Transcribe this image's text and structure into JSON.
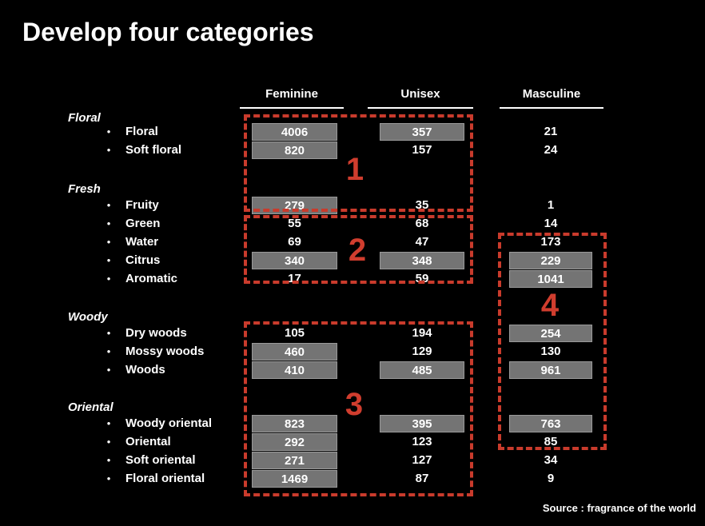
{
  "title": "Develop four categories",
  "source": "Source : fragrance of the world",
  "columns": [
    "Feminine",
    "Unisex",
    "Masculine"
  ],
  "icons": {
    "bullet": "•"
  },
  "colors": {
    "background": "#000000",
    "text": "#ffffff",
    "dashed_red": "#c93b2c",
    "number_red": "#d03d2e",
    "value_box_fill": "#747474",
    "value_box_border": "#9a9a9a"
  },
  "annotations": [
    {
      "label": "1"
    },
    {
      "label": "2"
    },
    {
      "label": "3"
    },
    {
      "label": "4"
    }
  ],
  "groups": [
    {
      "name": "Floral",
      "rows": [
        {
          "label": "Floral",
          "values": [
            {
              "v": "4006",
              "boxed": true
            },
            {
              "v": "357",
              "boxed": true
            },
            {
              "v": "21",
              "boxed": false
            }
          ]
        },
        {
          "label": "Soft floral",
          "values": [
            {
              "v": "820",
              "boxed": true
            },
            {
              "v": "157",
              "boxed": false
            },
            {
              "v": "24",
              "boxed": false
            }
          ]
        }
      ]
    },
    {
      "name": "Fresh",
      "rows": [
        {
          "label": "Fruity",
          "values": [
            {
              "v": "279",
              "boxed": true
            },
            {
              "v": "35",
              "boxed": false
            },
            {
              "v": "1",
              "boxed": false
            }
          ]
        },
        {
          "label": "Green",
          "values": [
            {
              "v": "55",
              "boxed": false
            },
            {
              "v": "68",
              "boxed": false
            },
            {
              "v": "14",
              "boxed": false
            }
          ]
        },
        {
          "label": "Water",
          "values": [
            {
              "v": "69",
              "boxed": false
            },
            {
              "v": "47",
              "boxed": false
            },
            {
              "v": "173",
              "boxed": false
            }
          ]
        },
        {
          "label": "Citrus",
          "values": [
            {
              "v": "340",
              "boxed": true
            },
            {
              "v": "348",
              "boxed": true
            },
            {
              "v": "229",
              "boxed": true
            }
          ]
        },
        {
          "label": "Aromatic",
          "values": [
            {
              "v": "17",
              "boxed": false
            },
            {
              "v": "59",
              "boxed": false
            },
            {
              "v": "1041",
              "boxed": true
            }
          ]
        }
      ]
    },
    {
      "name": "Woody",
      "rows": [
        {
          "label": "Dry woods",
          "values": [
            {
              "v": "105",
              "boxed": false
            },
            {
              "v": "194",
              "boxed": false
            },
            {
              "v": "254",
              "boxed": true
            }
          ]
        },
        {
          "label": "Mossy woods",
          "values": [
            {
              "v": "460",
              "boxed": true
            },
            {
              "v": "129",
              "boxed": false
            },
            {
              "v": "130",
              "boxed": false
            }
          ]
        },
        {
          "label": "Woods",
          "values": [
            {
              "v": "410",
              "boxed": true
            },
            {
              "v": "485",
              "boxed": true
            },
            {
              "v": "961",
              "boxed": true
            }
          ]
        }
      ]
    },
    {
      "name": "Oriental",
      "rows": [
        {
          "label": "Woody oriental",
          "values": [
            {
              "v": "823",
              "boxed": true
            },
            {
              "v": "395",
              "boxed": true
            },
            {
              "v": "763",
              "boxed": true
            }
          ]
        },
        {
          "label": "Oriental",
          "values": [
            {
              "v": "292",
              "boxed": true
            },
            {
              "v": "123",
              "boxed": false
            },
            {
              "v": "85",
              "boxed": false
            }
          ]
        },
        {
          "label": "Soft oriental",
          "values": [
            {
              "v": "271",
              "boxed": true
            },
            {
              "v": "127",
              "boxed": false
            },
            {
              "v": "34",
              "boxed": false
            }
          ]
        },
        {
          "label": "Floral oriental",
          "values": [
            {
              "v": "1469",
              "boxed": true
            },
            {
              "v": "87",
              "boxed": false
            },
            {
              "v": "9",
              "boxed": false
            }
          ]
        }
      ]
    }
  ]
}
